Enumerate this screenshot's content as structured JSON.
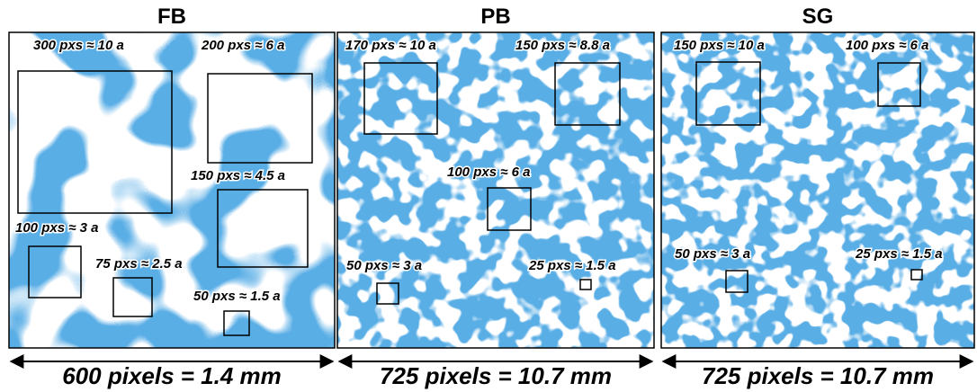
{
  "panels": [
    {
      "title": "FB",
      "boxes": [
        {
          "label": "300 pxs ≈ 10 a"
        },
        {
          "label": "200 pxs ≈ 6 a"
        },
        {
          "label": "150 pxs ≈ 4.5 a"
        },
        {
          "label": "100 pxs ≈ 3 a"
        },
        {
          "label": "75 pxs ≈ 2.5 a"
        },
        {
          "label": "50 pxs ≈ 1.5 a"
        }
      ],
      "scale": "600 pixels = 1.4 mm"
    },
    {
      "title": "PB",
      "boxes": [
        {
          "label": "170 pxs ≈ 10 a"
        },
        {
          "label": "150 pxs ≈ 8.8 a"
        },
        {
          "label": "100 pxs ≈ 6 a"
        },
        {
          "label": "50 pxs ≈ 3 a"
        },
        {
          "label": "25 pxs ≈ 1.5 a"
        }
      ],
      "scale": "725 pixels = 10.7 mm"
    },
    {
      "title": "SG",
      "boxes": [
        {
          "label": "150 pxs ≈ 10 a"
        },
        {
          "label": "100 pxs ≈ 6 a"
        },
        {
          "label": "50 pxs ≈ 3 a"
        },
        {
          "label": "25 pxs ≈ 1.5 a"
        }
      ],
      "scale": "725 pixels = 10.7 mm"
    }
  ]
}
